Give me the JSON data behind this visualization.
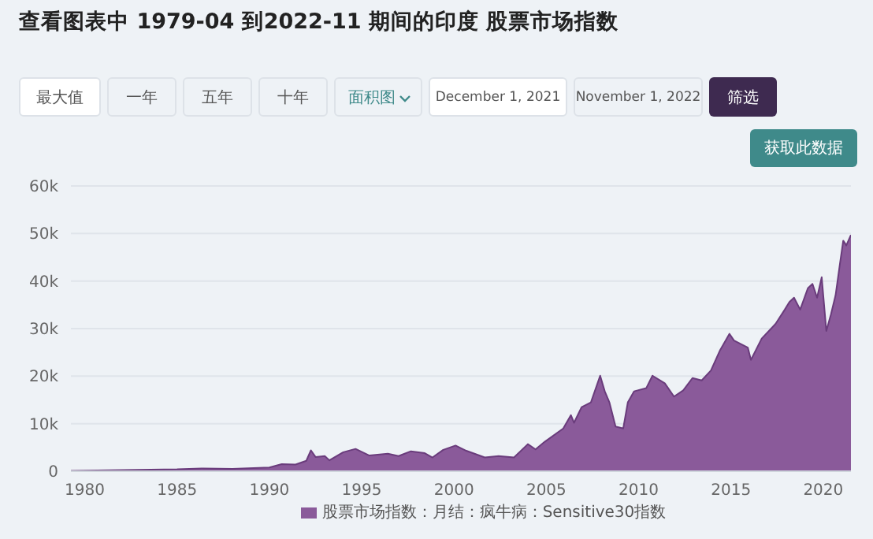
{
  "chart_data": {
    "type": "area",
    "title": "查看图表中 1979-04 到2022-11 期间的印度 股票市场指数",
    "annotations": [
      "最大值",
      "一年",
      "五年",
      "十年",
      "面积图",
      "December 1, 2021",
      "November 1, 2022",
      "筛选",
      "获取此数据"
    ],
    "x": [
      "1979-04",
      "1985-01",
      "1986-06",
      "1988-01",
      "1990-01",
      "1990-09",
      "1991-06",
      "1992-01",
      "1992-04",
      "1992-07",
      "1993-01",
      "1993-04",
      "1994-01",
      "1994-09",
      "1995-06",
      "1996-06",
      "1997-01",
      "1997-09",
      "1998-06",
      "1998-11",
      "1999-06",
      "2000-02",
      "2000-09",
      "2001-09",
      "2002-06",
      "2003-04",
      "2004-01",
      "2004-06",
      "2004-12",
      "2005-12",
      "2006-05",
      "2006-07",
      "2006-12",
      "2007-06",
      "2007-12",
      "2008-03",
      "2008-06",
      "2008-10",
      "2009-03",
      "2009-06",
      "2009-10",
      "2010-06",
      "2010-10",
      "2011-06",
      "2011-12",
      "2012-06",
      "2012-12",
      "2013-06",
      "2013-12",
      "2014-06",
      "2014-12",
      "2015-03",
      "2015-12",
      "2016-02",
      "2016-09",
      "2017-06",
      "2017-12",
      "2018-03",
      "2018-06",
      "2018-10",
      "2019-03",
      "2019-06",
      "2019-09",
      "2019-12",
      "2020-03",
      "2020-06",
      "2020-09",
      "2020-12",
      "2021-02",
      "2021-04",
      "2021-07"
    ],
    "series": [
      {
        "name": "股票市场指数：月结：疯牛病：Sensitive30指数",
        "color": "#8a5a9a",
        "values": [
          100,
          400,
          600,
          500,
          800,
          1500,
          1400,
          2200,
          4400,
          3000,
          3200,
          2300,
          4000,
          4700,
          3300,
          3700,
          3200,
          4200,
          3800,
          2900,
          4500,
          5400,
          4300,
          2900,
          3200,
          2900,
          5700,
          4600,
          6200,
          9000,
          11800,
          10200,
          13500,
          14500,
          20100,
          16800,
          14500,
          9400,
          9000,
          14500,
          16800,
          17500,
          20100,
          18500,
          15700,
          17000,
          19600,
          19100,
          21200,
          25500,
          28900,
          27500,
          26000,
          23400,
          27900,
          31000,
          34000,
          35600,
          36500,
          34000,
          38500,
          39400,
          36500,
          40800,
          29500,
          33000,
          37000,
          44000,
          48500,
          47500,
          49700
        ]
      }
    ],
    "xlim": [
      "1979-04",
      "2021-07"
    ],
    "xticks": [
      "1980",
      "1985",
      "1990",
      "1995",
      "2000",
      "2005",
      "2010",
      "2015",
      "2020"
    ],
    "ylim": [
      0,
      60000
    ],
    "yticks": [
      0,
      {
        "value": 10000,
        "label": "10k"
      },
      {
        "value": 20000,
        "label": "20k"
      },
      {
        "value": 30000,
        "label": "30k"
      },
      {
        "value": 40000,
        "label": "40k"
      },
      {
        "value": 50000,
        "label": "50k"
      },
      {
        "value": 60000,
        "label": "60k"
      }
    ],
    "grid": "y",
    "legend": "bottom"
  }
}
